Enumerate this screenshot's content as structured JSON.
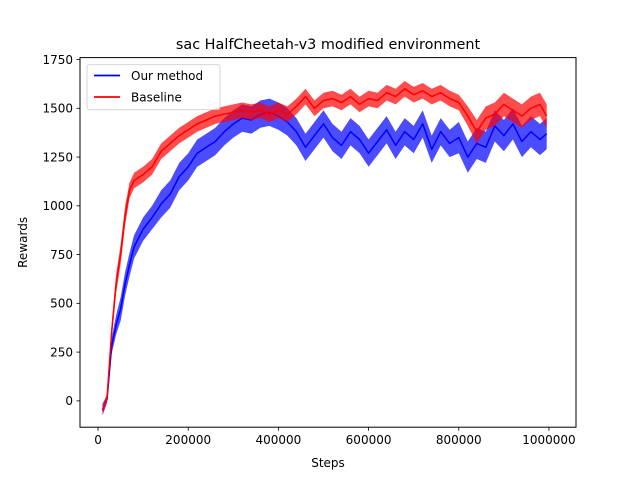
{
  "chart_data": {
    "type": "line",
    "title": "sac HalfCheetah-v3 modified environment",
    "xlabel": "Steps",
    "ylabel": "Rewards",
    "xlim": [
      -40000,
      1060000
    ],
    "ylim": [
      -135,
      1760
    ],
    "xticks": [
      {
        "value": 0,
        "label": "0"
      },
      {
        "value": 200000,
        "label": "200000"
      },
      {
        "value": 400000,
        "label": "400000"
      },
      {
        "value": 600000,
        "label": "600000"
      },
      {
        "value": 800000,
        "label": "800000"
      },
      {
        "value": 1000000,
        "label": "1000000"
      }
    ],
    "yticks": [
      {
        "value": 0,
        "label": "0"
      },
      {
        "value": 250,
        "label": "250"
      },
      {
        "value": 500,
        "label": "500"
      },
      {
        "value": 750,
        "label": "750"
      },
      {
        "value": 1000,
        "label": "1000"
      },
      {
        "value": 1250,
        "label": "1250"
      },
      {
        "value": 1500,
        "label": "1500"
      },
      {
        "value": 1750,
        "label": "1750"
      }
    ],
    "grid": false,
    "legend_position": "top-left",
    "series": [
      {
        "name": "Our method",
        "color": "#0000ff",
        "x": [
          10000,
          20000,
          30000,
          40000,
          50000,
          60000,
          70000,
          80000,
          100000,
          120000,
          140000,
          160000,
          180000,
          200000,
          220000,
          240000,
          260000,
          280000,
          300000,
          320000,
          340000,
          360000,
          380000,
          400000,
          420000,
          440000,
          460000,
          480000,
          500000,
          520000,
          540000,
          560000,
          580000,
          600000,
          620000,
          640000,
          660000,
          680000,
          700000,
          720000,
          740000,
          760000,
          780000,
          800000,
          820000,
          840000,
          860000,
          880000,
          900000,
          920000,
          940000,
          960000,
          980000,
          995000
        ],
        "y": [
          -45,
          10,
          280,
          390,
          470,
          600,
          700,
          790,
          880,
          940,
          1010,
          1060,
          1150,
          1200,
          1270,
          1300,
          1330,
          1380,
          1420,
          1450,
          1440,
          1470,
          1480,
          1460,
          1430,
          1380,
          1300,
          1360,
          1420,
          1350,
          1310,
          1380,
          1340,
          1270,
          1330,
          1390,
          1310,
          1380,
          1340,
          1420,
          1290,
          1380,
          1320,
          1350,
          1250,
          1320,
          1300,
          1410,
          1360,
          1420,
          1330,
          1380,
          1340,
          1370
        ],
        "band": [
          30,
          20,
          40,
          50,
          60,
          60,
          60,
          60,
          60,
          60,
          70,
          70,
          70,
          70,
          70,
          70,
          70,
          70,
          70,
          70,
          70,
          70,
          70,
          70,
          70,
          70,
          70,
          70,
          70,
          70,
          70,
          70,
          70,
          70,
          70,
          70,
          70,
          70,
          70,
          70,
          70,
          70,
          70,
          80,
          80,
          80,
          80,
          80,
          80,
          80,
          80,
          80,
          80,
          80
        ]
      },
      {
        "name": "Baseline",
        "color": "#ff0000",
        "x": [
          10000,
          20000,
          30000,
          40000,
          50000,
          60000,
          70000,
          80000,
          100000,
          120000,
          140000,
          160000,
          180000,
          200000,
          220000,
          240000,
          260000,
          280000,
          300000,
          320000,
          340000,
          360000,
          380000,
          400000,
          420000,
          440000,
          460000,
          480000,
          500000,
          520000,
          540000,
          560000,
          580000,
          600000,
          620000,
          640000,
          660000,
          680000,
          700000,
          720000,
          740000,
          760000,
          780000,
          800000,
          820000,
          840000,
          860000,
          880000,
          900000,
          920000,
          940000,
          960000,
          980000,
          995000
        ],
        "y": [
          -50,
          20,
          350,
          600,
          750,
          950,
          1080,
          1130,
          1160,
          1200,
          1280,
          1320,
          1360,
          1390,
          1420,
          1440,
          1460,
          1470,
          1480,
          1490,
          1480,
          1490,
          1470,
          1490,
          1470,
          1510,
          1560,
          1500,
          1540,
          1550,
          1530,
          1560,
          1520,
          1550,
          1540,
          1580,
          1560,
          1600,
          1570,
          1590,
          1560,
          1580,
          1550,
          1530,
          1460,
          1380,
          1450,
          1470,
          1520,
          1490,
          1460,
          1500,
          1520,
          1460
        ],
        "band": [
          20,
          20,
          40,
          50,
          50,
          50,
          40,
          40,
          40,
          40,
          40,
          40,
          40,
          40,
          40,
          40,
          40,
          40,
          40,
          40,
          40,
          40,
          40,
          40,
          40,
          40,
          40,
          40,
          40,
          40,
          40,
          40,
          40,
          40,
          40,
          40,
          40,
          40,
          40,
          40,
          40,
          40,
          40,
          40,
          50,
          60,
          60,
          60,
          60,
          60,
          60,
          60,
          60,
          60
        ]
      }
    ]
  }
}
